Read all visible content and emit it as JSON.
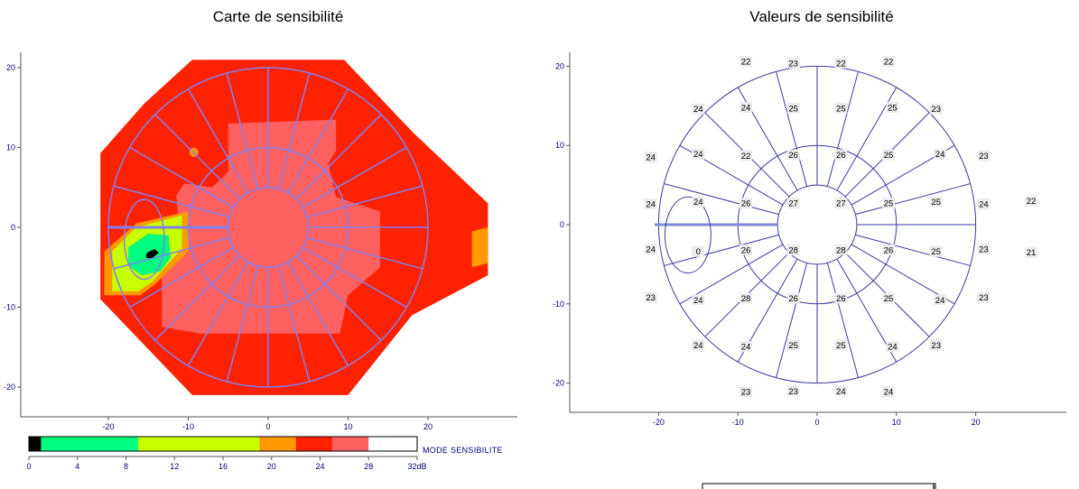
{
  "left_chart": {
    "title": "Carte de sensibilité"
  },
  "right_chart": {
    "title": "Valeurs de sensibilité"
  },
  "axes": {
    "x_ticks": [
      "-20",
      "-10",
      "0",
      "10",
      "20"
    ],
    "y_ticks": [
      "20",
      "10",
      "0",
      "-10",
      "-20"
    ]
  },
  "legend": {
    "label": "MODE SENSIBILITE",
    "ticks": [
      "0",
      "4",
      "8",
      "12",
      "16",
      "20",
      "24",
      "28",
      "32dB"
    ],
    "colors": [
      "#000000",
      "#00ff80",
      "#c8ff00",
      "#ff9900",
      "#ff2200",
      "#ff6060",
      "#ffffff"
    ]
  },
  "chart_data": [
    {
      "type": "heatmap",
      "title": "Carte de sensibilité",
      "xlim": [
        -30,
        30
      ],
      "ylim": [
        -24,
        22
      ],
      "grid": true,
      "scale_dB": [
        0,
        32
      ],
      "legend_bins_dB": [
        [
          0,
          1
        ],
        [
          1,
          9
        ],
        [
          9,
          19
        ],
        [
          19,
          22
        ],
        [
          22,
          25
        ],
        [
          25,
          28
        ],
        [
          28,
          32
        ]
      ]
    },
    {
      "type": "scatter",
      "title": "Valeurs de sensibilité",
      "xlim": [
        -31,
        31
      ],
      "ylim": [
        -23,
        22
      ],
      "points": [
        {
          "x": -9,
          "y": 20.5,
          "v": "22"
        },
        {
          "x": -3,
          "y": 20.3,
          "v": "23"
        },
        {
          "x": 3,
          "y": 20.3,
          "v": "22"
        },
        {
          "x": 9,
          "y": 20.5,
          "v": "22"
        },
        {
          "x": -15,
          "y": 14.5,
          "v": "24"
        },
        {
          "x": -9,
          "y": 14.7,
          "v": "24"
        },
        {
          "x": -3,
          "y": 14.6,
          "v": "25"
        },
        {
          "x": 3,
          "y": 14.6,
          "v": "25"
        },
        {
          "x": 9.5,
          "y": 14.7,
          "v": "25"
        },
        {
          "x": 15,
          "y": 14.5,
          "v": "23"
        },
        {
          "x": -21,
          "y": 8.4,
          "v": "24"
        },
        {
          "x": -15,
          "y": 8.8,
          "v": "24"
        },
        {
          "x": -9,
          "y": 8.6,
          "v": "22"
        },
        {
          "x": -3,
          "y": 8.7,
          "v": "26"
        },
        {
          "x": 3,
          "y": 8.7,
          "v": "26"
        },
        {
          "x": 9,
          "y": 8.7,
          "v": "25"
        },
        {
          "x": 15.5,
          "y": 8.8,
          "v": "24"
        },
        {
          "x": 21,
          "y": 8.6,
          "v": "23"
        },
        {
          "x": -21,
          "y": 2.5,
          "v": "24"
        },
        {
          "x": -15,
          "y": 2.8,
          "v": "24"
        },
        {
          "x": -9,
          "y": 2.6,
          "v": "26"
        },
        {
          "x": -3,
          "y": 2.6,
          "v": "27"
        },
        {
          "x": 3,
          "y": 2.6,
          "v": "27"
        },
        {
          "x": 9,
          "y": 2.6,
          "v": "25"
        },
        {
          "x": 15,
          "y": 2.8,
          "v": "25"
        },
        {
          "x": 21,
          "y": 2.5,
          "v": "24"
        },
        {
          "x": 27,
          "y": 2.9,
          "v": "22"
        },
        {
          "x": -21,
          "y": -3.2,
          "v": "24"
        },
        {
          "x": -15,
          "y": -3.5,
          "v": "0"
        },
        {
          "x": -9,
          "y": -3.3,
          "v": "26"
        },
        {
          "x": -3,
          "y": -3.3,
          "v": "28"
        },
        {
          "x": 3,
          "y": -3.3,
          "v": "28"
        },
        {
          "x": 9,
          "y": -3.3,
          "v": "26"
        },
        {
          "x": 15,
          "y": -3.5,
          "v": "25"
        },
        {
          "x": 21,
          "y": -3.2,
          "v": "23"
        },
        {
          "x": 27,
          "y": -3.6,
          "v": "21"
        },
        {
          "x": -21,
          "y": -9.3,
          "v": "23"
        },
        {
          "x": -15,
          "y": -9.6,
          "v": "24"
        },
        {
          "x": -9,
          "y": -9.4,
          "v": "28"
        },
        {
          "x": -3,
          "y": -9.4,
          "v": "26"
        },
        {
          "x": 3,
          "y": -9.4,
          "v": "26"
        },
        {
          "x": 9,
          "y": -9.4,
          "v": "25"
        },
        {
          "x": 15.5,
          "y": -9.6,
          "v": "24"
        },
        {
          "x": 21,
          "y": -9.3,
          "v": "23"
        },
        {
          "x": -15,
          "y": -15.3,
          "v": "24"
        },
        {
          "x": -9,
          "y": -15.5,
          "v": "24"
        },
        {
          "x": -3,
          "y": -15.3,
          "v": "25"
        },
        {
          "x": 3,
          "y": -15.3,
          "v": "25"
        },
        {
          "x": 9.5,
          "y": -15.5,
          "v": "24"
        },
        {
          "x": 15,
          "y": -15.3,
          "v": "23"
        },
        {
          "x": -9,
          "y": -21.2,
          "v": "23"
        },
        {
          "x": -3,
          "y": -21.1,
          "v": "23"
        },
        {
          "x": 3,
          "y": -21.1,
          "v": "24"
        },
        {
          "x": 9,
          "y": -21.2,
          "v": "24"
        }
      ]
    }
  ]
}
